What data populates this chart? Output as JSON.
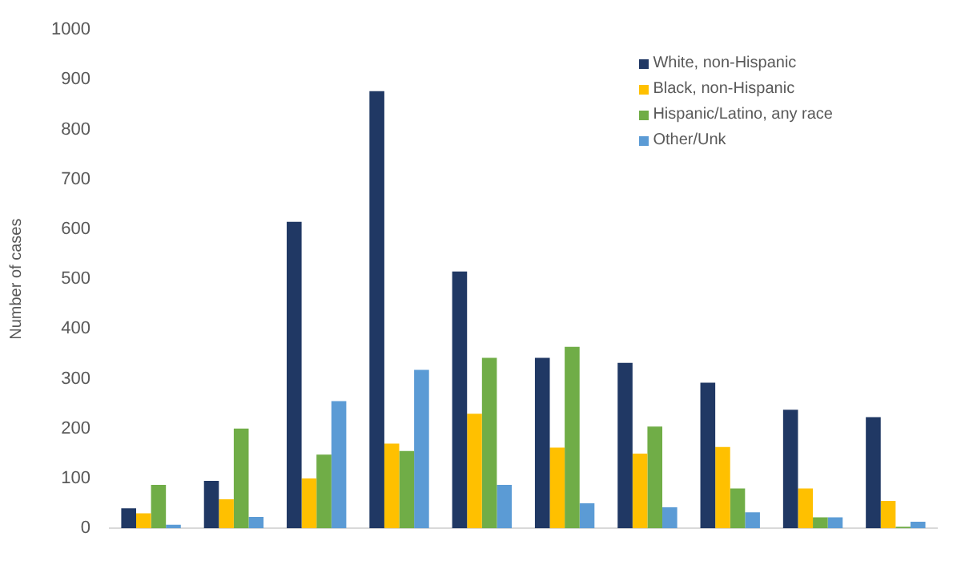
{
  "chart_data": {
    "type": "bar",
    "ylabel": "Number of cases",
    "categories": [
      null,
      null,
      null,
      null,
      null,
      null,
      null,
      null,
      null,
      null
    ],
    "series": [
      {
        "name": "White, non-Hispanic",
        "color": "#203864",
        "values": [
          40,
          95,
          615,
          877,
          515,
          342,
          332,
          292,
          238,
          223
        ]
      },
      {
        "name": "Black, non-Hispanic",
        "color": "#ffc000",
        "values": [
          30,
          58,
          100,
          170,
          230,
          162,
          150,
          163,
          80,
          55
        ]
      },
      {
        "name": "Hispanic/Latino, any race",
        "color": "#70ad47",
        "values": [
          87,
          200,
          148,
          155,
          342,
          364,
          204,
          80,
          22,
          3
        ]
      },
      {
        "name": "Other/Unk",
        "color": "#5b9bd5",
        "values": [
          7,
          23,
          255,
          318,
          87,
          50,
          42,
          32,
          22,
          13
        ]
      }
    ],
    "ylim": [
      0,
      1000
    ],
    "yticks": [
      0,
      100,
      200,
      300,
      400,
      500,
      600,
      700,
      800,
      900,
      1000
    ],
    "grid": false,
    "legend": "top right"
  }
}
